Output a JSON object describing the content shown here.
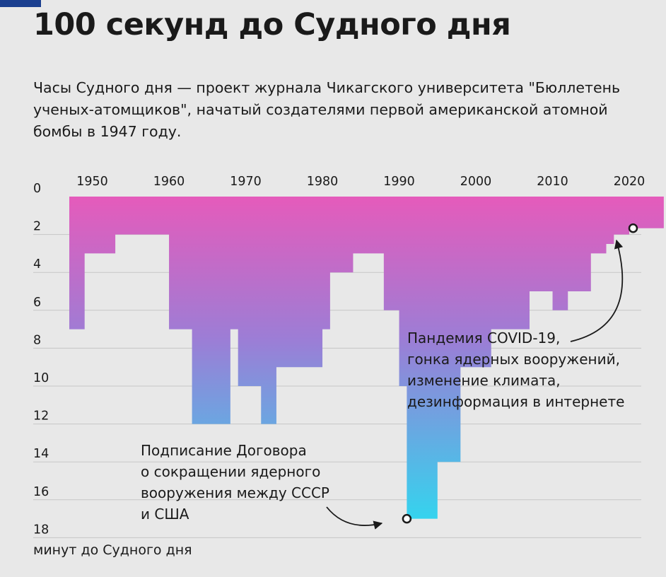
{
  "title": "100 секунд до Судного дня",
  "subtitle": "Часы Судного дня — проект журнала Чикагского университета \"Бюллетень ученых-атомщиков\", начатый создателями первой американской атомной бомбы в 1947 году.",
  "footnote": "минут до Судного дня",
  "colors": {
    "top": "#e55bbb",
    "mid": "#9b7ed6",
    "bottom": "#35d3ee",
    "background": "#e8e8e8",
    "grid": "#c6c6c6"
  },
  "chart_data": {
    "type": "area",
    "title": "100 секунд до Судного дня",
    "ylabel": "минут до Судного дня",
    "x_ticks": [
      1950,
      1960,
      1970,
      1980,
      1990,
      2000,
      2010,
      2020
    ],
    "y_ticks": [
      0,
      2,
      4,
      6,
      8,
      10,
      12,
      14,
      16,
      18
    ],
    "xlim": [
      1944.4,
      2024.5
    ],
    "ylim": [
      0,
      18
    ],
    "y_inverted": true,
    "series": [
      {
        "values": [
          {
            "year": 1947,
            "minutes": 7
          },
          {
            "year": 1949,
            "minutes": 3
          },
          {
            "year": 1953,
            "minutes": 2
          },
          {
            "year": 1960,
            "minutes": 7
          },
          {
            "year": 1963,
            "minutes": 12
          },
          {
            "year": 1968,
            "minutes": 7
          },
          {
            "year": 1969,
            "minutes": 10
          },
          {
            "year": 1972,
            "minutes": 12
          },
          {
            "year": 1974,
            "minutes": 9
          },
          {
            "year": 1980,
            "minutes": 7
          },
          {
            "year": 1981,
            "minutes": 4
          },
          {
            "year": 1984,
            "minutes": 3
          },
          {
            "year": 1988,
            "minutes": 6
          },
          {
            "year": 1990,
            "minutes": 10
          },
          {
            "year": 1991,
            "minutes": 17
          },
          {
            "year": 1995,
            "minutes": 14
          },
          {
            "year": 1998,
            "minutes": 9
          },
          {
            "year": 2002,
            "minutes": 7
          },
          {
            "year": 2007,
            "minutes": 5
          },
          {
            "year": 2010,
            "minutes": 6
          },
          {
            "year": 2012,
            "minutes": 5
          },
          {
            "year": 2015,
            "minutes": 3
          },
          {
            "year": 2017,
            "minutes": 2.5
          },
          {
            "year": 2018,
            "minutes": 2
          },
          {
            "year": 2020,
            "minutes": 1.67
          },
          {
            "year": 2021,
            "minutes": 1.67
          }
        ]
      }
    ],
    "annotations": [
      {
        "year": 1991,
        "minutes": 17,
        "lines": [
          "Подписание Договора",
          "о сокращении ядерного",
          "вооружения между СССР",
          "и США"
        ]
      },
      {
        "year": 2020.5,
        "minutes": 1.67,
        "lines": [
          "Пандемия COVID-19,",
          "гонка ядерных вооружений,",
          "изменение климата,",
          "дезинформация в интернете"
        ]
      }
    ]
  }
}
